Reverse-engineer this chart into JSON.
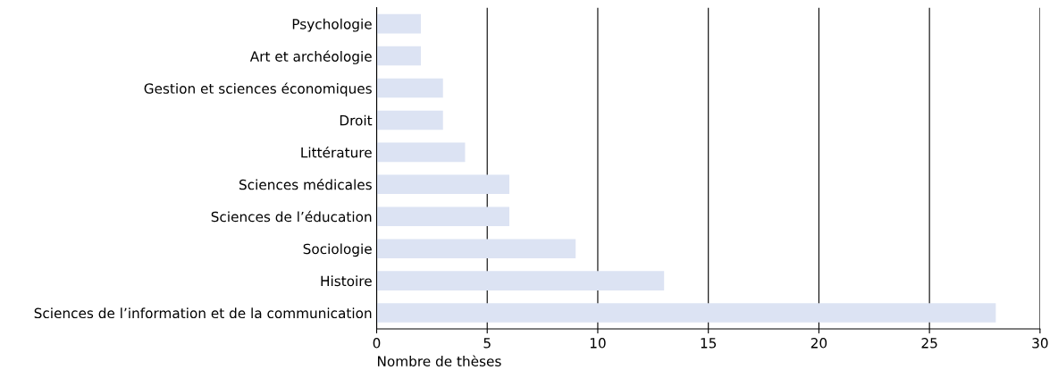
{
  "chart_data": {
    "type": "bar",
    "orientation": "horizontal",
    "xlabel": "Nombre de thèses",
    "categories": [
      "Psychologie",
      "Art et archéologie",
      "Gestion et sciences économiques",
      "Droit",
      "Littérature",
      "Sciences médicales",
      "Sciences de l’éducation",
      "Sociologie",
      "Histoire",
      "Sciences de l’information et de la communication"
    ],
    "values": [
      2,
      2,
      3,
      3,
      4,
      6,
      6,
      9,
      13,
      28
    ],
    "color": "#dce3f3",
    "xlim": [
      0,
      30
    ],
    "xticks": [
      0,
      5,
      10,
      15,
      20,
      25,
      30
    ],
    "grid": "x",
    "legend": false
  }
}
